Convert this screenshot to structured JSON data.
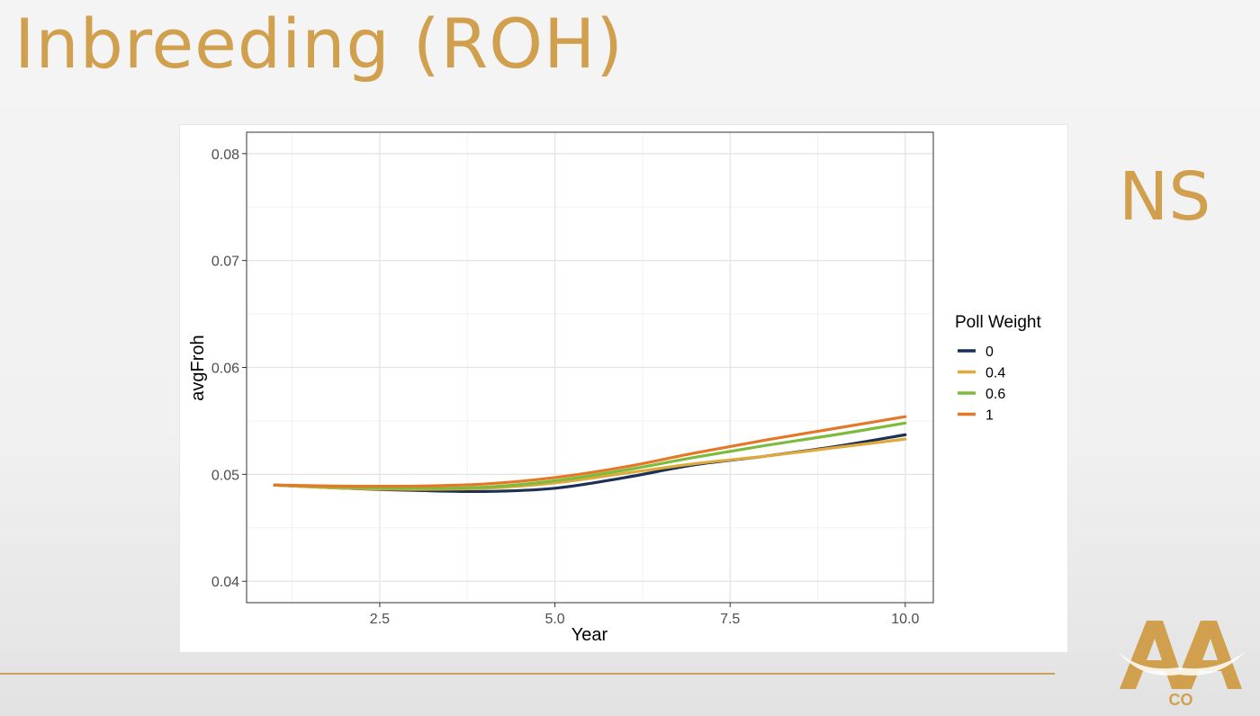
{
  "slide": {
    "title": "Inbreeding (ROH)",
    "side_label": "NS",
    "logo_text": "CO",
    "accent_color": "#d1a04e",
    "rule_color": "#c9a458"
  },
  "chart_data": {
    "type": "line",
    "title": "",
    "xlabel": "Year",
    "ylabel": "avgFroh",
    "xlim": [
      0.6,
      10.4
    ],
    "ylim": [
      0.038,
      0.082
    ],
    "x_ticks": [
      2.5,
      5.0,
      7.5,
      10.0
    ],
    "x_tick_labels": [
      "2.5",
      "5.0",
      "7.5",
      "10.0"
    ],
    "y_ticks": [
      0.04,
      0.05,
      0.06,
      0.07,
      0.08
    ],
    "y_tick_labels": [
      "0.04",
      "0.05",
      "0.06",
      "0.07",
      "0.08"
    ],
    "grid": true,
    "legend_title": "Poll Weight",
    "legend_position": "right",
    "x": [
      1,
      2,
      3,
      4,
      5,
      6,
      7,
      8,
      9,
      10
    ],
    "series": [
      {
        "name": "0",
        "color": "#1c2f54",
        "values": [
          0.049,
          0.0487,
          0.0485,
          0.0484,
          0.0487,
          0.0497,
          0.0509,
          0.0517,
          0.0526,
          0.0537
        ]
      },
      {
        "name": "0.4",
        "color": "#e0a93b",
        "values": [
          0.049,
          0.0487,
          0.0486,
          0.0487,
          0.0492,
          0.0501,
          0.051,
          0.0517,
          0.0525,
          0.0533
        ]
      },
      {
        "name": "0.6",
        "color": "#7dbb3c",
        "values": [
          0.049,
          0.0488,
          0.0487,
          0.0488,
          0.0494,
          0.0504,
          0.0516,
          0.0527,
          0.0537,
          0.0548
        ]
      },
      {
        "name": "1",
        "color": "#e57828",
        "values": [
          0.049,
          0.0489,
          0.0489,
          0.0491,
          0.0497,
          0.0507,
          0.052,
          0.0532,
          0.0543,
          0.0554
        ]
      }
    ]
  }
}
